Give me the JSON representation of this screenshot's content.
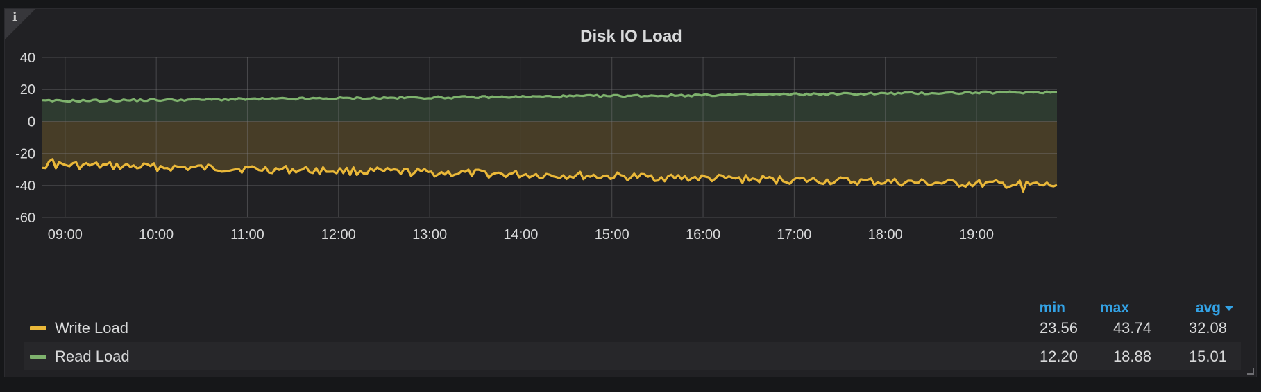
{
  "panel": {
    "title": "Disk IO Load",
    "info_icon": "info-icon"
  },
  "chart_data": {
    "type": "area",
    "title": "Disk IO Load",
    "x_ticks": [
      "09:00",
      "10:00",
      "11:00",
      "12:00",
      "13:00",
      "14:00",
      "15:00",
      "16:00",
      "17:00",
      "18:00",
      "19:00"
    ],
    "x_range": [
      "08:45",
      "19:53"
    ],
    "y_ticks": [
      40,
      20,
      0,
      -20,
      -40,
      -60
    ],
    "ylim": [
      -60,
      40
    ],
    "grid": true,
    "legend_position": "bottom",
    "series": [
      {
        "name": "Write Load",
        "color": "#eab839",
        "fill": "#4a3f28",
        "sign": "negative",
        "min": 23.56,
        "max": 43.74,
        "avg": 32.08
      },
      {
        "name": "Read Load",
        "color": "#7eb26d",
        "fill": "#2f3d31",
        "sign": "positive",
        "min": 12.2,
        "max": 18.88,
        "avg": 15.01
      }
    ]
  },
  "legend": {
    "columns": [
      "min",
      "max",
      "avg"
    ],
    "sort_icon": "caret-down-icon",
    "rows": [
      {
        "name": "Write Load",
        "min": "23.56",
        "max": "43.74",
        "avg": "32.08",
        "color": "#eab839"
      },
      {
        "name": "Read Load",
        "min": "12.20",
        "max": "18.88",
        "avg": "15.01",
        "color": "#7eb26d"
      }
    ]
  }
}
